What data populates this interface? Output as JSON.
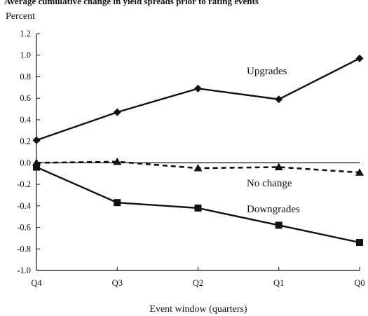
{
  "chart_data": {
    "type": "line",
    "title": "Average cumulative change in yield spreads prior to rating events",
    "ylabel": "Percent",
    "xlabel": "Event window (quarters)",
    "categories": [
      "Q4",
      "Q3",
      "Q2",
      "Q1",
      "Q0"
    ],
    "ylim": [
      -1.0,
      1.2
    ],
    "yticks": [
      "1.2",
      "1.0",
      "0.8",
      "0.6",
      "0.4",
      "0.2",
      "0.0",
      "-0.2",
      "-0.4",
      "-0.6",
      "-0.8",
      "-1.0"
    ],
    "ytick_values": [
      1.2,
      1.0,
      0.8,
      0.6,
      0.4,
      0.2,
      0.0,
      -0.2,
      -0.4,
      -0.6,
      -0.8,
      -1.0
    ],
    "grid": false,
    "legend": "none",
    "series": [
      {
        "name": "Upgrades",
        "values": [
          0.21,
          0.47,
          0.69,
          0.59,
          0.97
        ],
        "marker": "diamond",
        "line": "solid",
        "color": "#111111"
      },
      {
        "name": "No change",
        "values": [
          0.0,
          0.01,
          -0.05,
          -0.04,
          -0.09
        ],
        "marker": "triangle",
        "line": "dashed",
        "color": "#111111"
      },
      {
        "name": "Downgrades",
        "values": [
          -0.04,
          -0.37,
          -0.42,
          -0.58,
          -0.74
        ],
        "marker": "square",
        "line": "solid",
        "color": "#111111"
      }
    ]
  }
}
